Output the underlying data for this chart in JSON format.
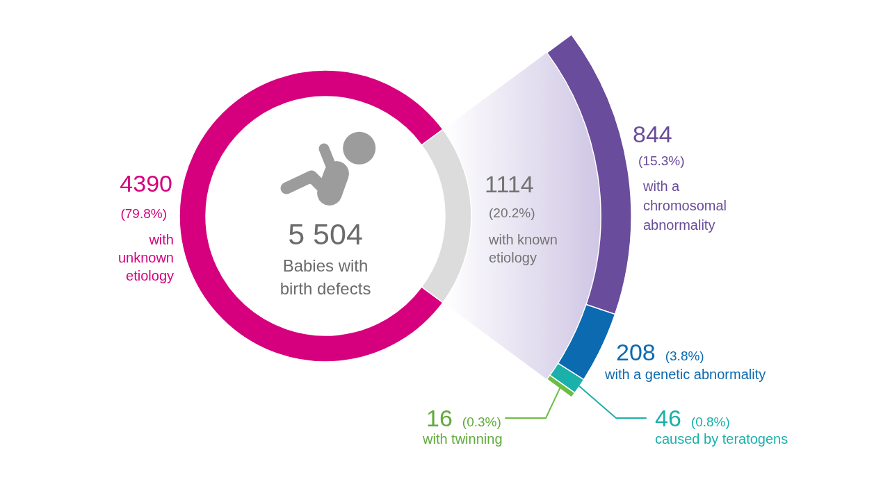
{
  "chart_data": [
    {
      "type": "donut",
      "title": "5 504",
      "subtitle": "Babies with birth defects",
      "categories": [
        "with unknown etiology",
        "with known etiology"
      ],
      "values": [
        4390,
        1114
      ],
      "colors": [
        "#d6007f",
        "#dcdcdc"
      ],
      "data_labels": true,
      "annotations": [
        "(79.8%)",
        "(20.2%)"
      ]
    },
    {
      "type": "other",
      "categories": [
        "with a chromosomal abnormality",
        "with a genetic abnormality",
        "caused by teratogens",
        "with twinning"
      ],
      "values": [
        844,
        208,
        46,
        16
      ],
      "colors": [
        "#6a4c9c",
        "#0b6ab0",
        "#1bb0aa",
        "#6cbd42"
      ],
      "data_labels": true,
      "annotations": [
        "(15.3%)",
        "(3.8%)",
        "(0.8%)",
        "(0.3%)"
      ]
    }
  ]
}
